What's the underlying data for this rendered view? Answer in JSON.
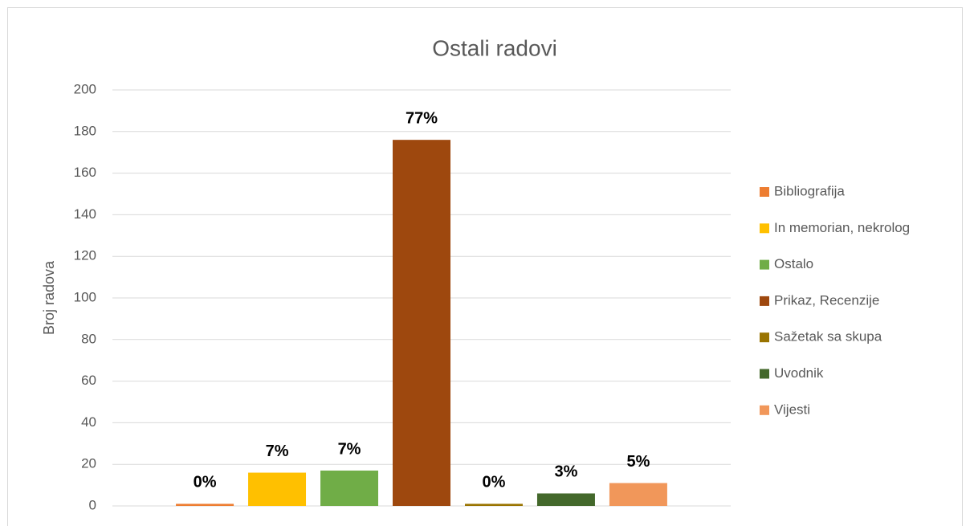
{
  "chart_data": {
    "type": "bar",
    "title": "Ostali radovi",
    "y_label": "Broj radova",
    "categories": [
      null
    ],
    "series": [
      {
        "name": "Bibliografija",
        "color": "#ed7d31",
        "values": [
          1
        ],
        "value_labels": [
          "0%"
        ]
      },
      {
        "name": "In memorian, nekrolog",
        "color": "#ffc000",
        "values": [
          16
        ],
        "value_labels": [
          "7%"
        ]
      },
      {
        "name": "Ostalo",
        "color": "#70ad47",
        "values": [
          17
        ],
        "value_labels": [
          "7%"
        ]
      },
      {
        "name": "Prikaz, Recenzije",
        "color": "#9e480e",
        "values": [
          176
        ],
        "value_labels": [
          "77%"
        ]
      },
      {
        "name": "Sažetak sa skupa",
        "color": "#997300",
        "values": [
          1
        ],
        "value_labels": [
          "0%"
        ]
      },
      {
        "name": "Uvodnik",
        "color": "#43682b",
        "values": [
          6
        ],
        "value_labels": [
          "3%"
        ]
      },
      {
        "name": "Vijesti",
        "color": "#f1975a",
        "values": [
          11
        ],
        "value_labels": [
          "5%"
        ]
      }
    ],
    "ylim": [
      0,
      200
    ],
    "yticks": [
      0,
      20,
      40,
      60,
      80,
      100,
      120,
      140,
      160,
      180,
      200
    ],
    "grid": true,
    "legend": "right"
  }
}
